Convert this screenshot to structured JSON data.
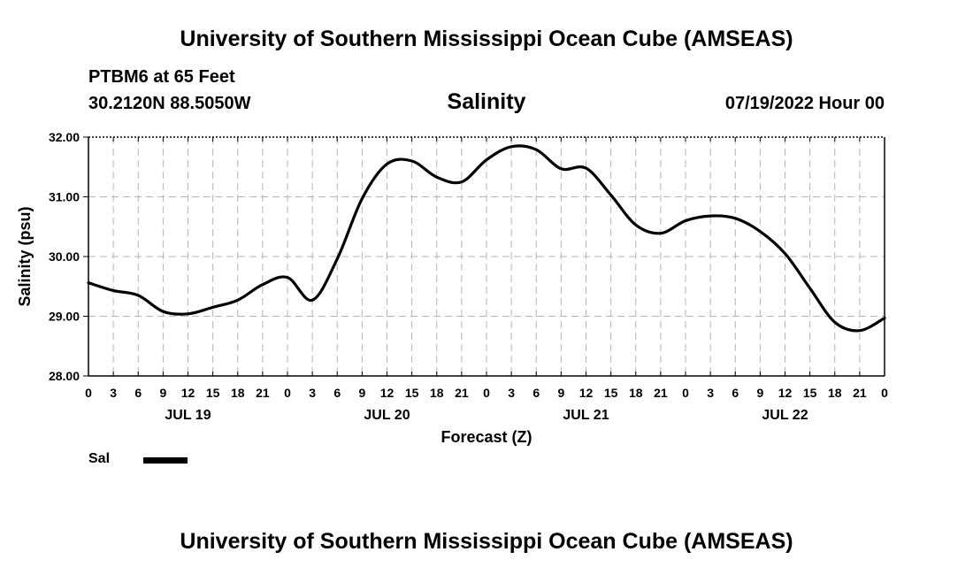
{
  "header": {
    "title": "University of Southern Mississippi Ocean Cube (AMSEAS)",
    "station": "PTBM6 at 65 Feet",
    "coords": "30.2120N  88.5050W",
    "variable": "Salinity",
    "datetime": "07/19/2022 Hour 00"
  },
  "footer": {
    "title": "University of Southern Mississippi Ocean Cube (AMSEAS)"
  },
  "chart_data": {
    "type": "line",
    "title": "Salinity",
    "xlabel": "Forecast (Z)",
    "ylabel": "Salinity (psu)",
    "ylim": [
      28.0,
      32.0
    ],
    "xlim": [
      0,
      96
    ],
    "grid": true,
    "y_ticks": [
      "28.00",
      "29.00",
      "30.00",
      "31.00",
      "32.00"
    ],
    "x_tick_labels": [
      "0",
      "3",
      "6",
      "9",
      "12",
      "15",
      "18",
      "21",
      "0",
      "3",
      "6",
      "9",
      "12",
      "15",
      "18",
      "21",
      "0",
      "3",
      "6",
      "9",
      "12",
      "15",
      "18",
      "21",
      "0",
      "3",
      "6",
      "9",
      "12",
      "15",
      "18",
      "21",
      "0"
    ],
    "day_labels": [
      {
        "label": "JUL 19",
        "hour": 12
      },
      {
        "label": "JUL 20",
        "hour": 36
      },
      {
        "label": "JUL 21",
        "hour": 60
      },
      {
        "label": "JUL 22",
        "hour": 84
      }
    ],
    "legend": [
      {
        "name": "Sal",
        "color": "#000000"
      }
    ],
    "series": [
      {
        "name": "Sal",
        "x": [
          0,
          3,
          6,
          9,
          12,
          15,
          18,
          21,
          24,
          27,
          30,
          33,
          36,
          39,
          42,
          45,
          48,
          51,
          54,
          57,
          60,
          63,
          66,
          69,
          72,
          75,
          78,
          81,
          84,
          87,
          90,
          93,
          96
        ],
        "y": [
          29.56,
          29.43,
          29.35,
          29.08,
          29.04,
          29.15,
          29.27,
          29.53,
          29.65,
          29.27,
          29.96,
          30.97,
          31.55,
          31.6,
          31.33,
          31.25,
          31.62,
          31.84,
          31.79,
          31.47,
          31.48,
          31.03,
          30.53,
          30.39,
          30.6,
          30.68,
          30.64,
          30.42,
          30.05,
          29.47,
          28.9,
          28.76,
          28.97
        ]
      }
    ]
  }
}
